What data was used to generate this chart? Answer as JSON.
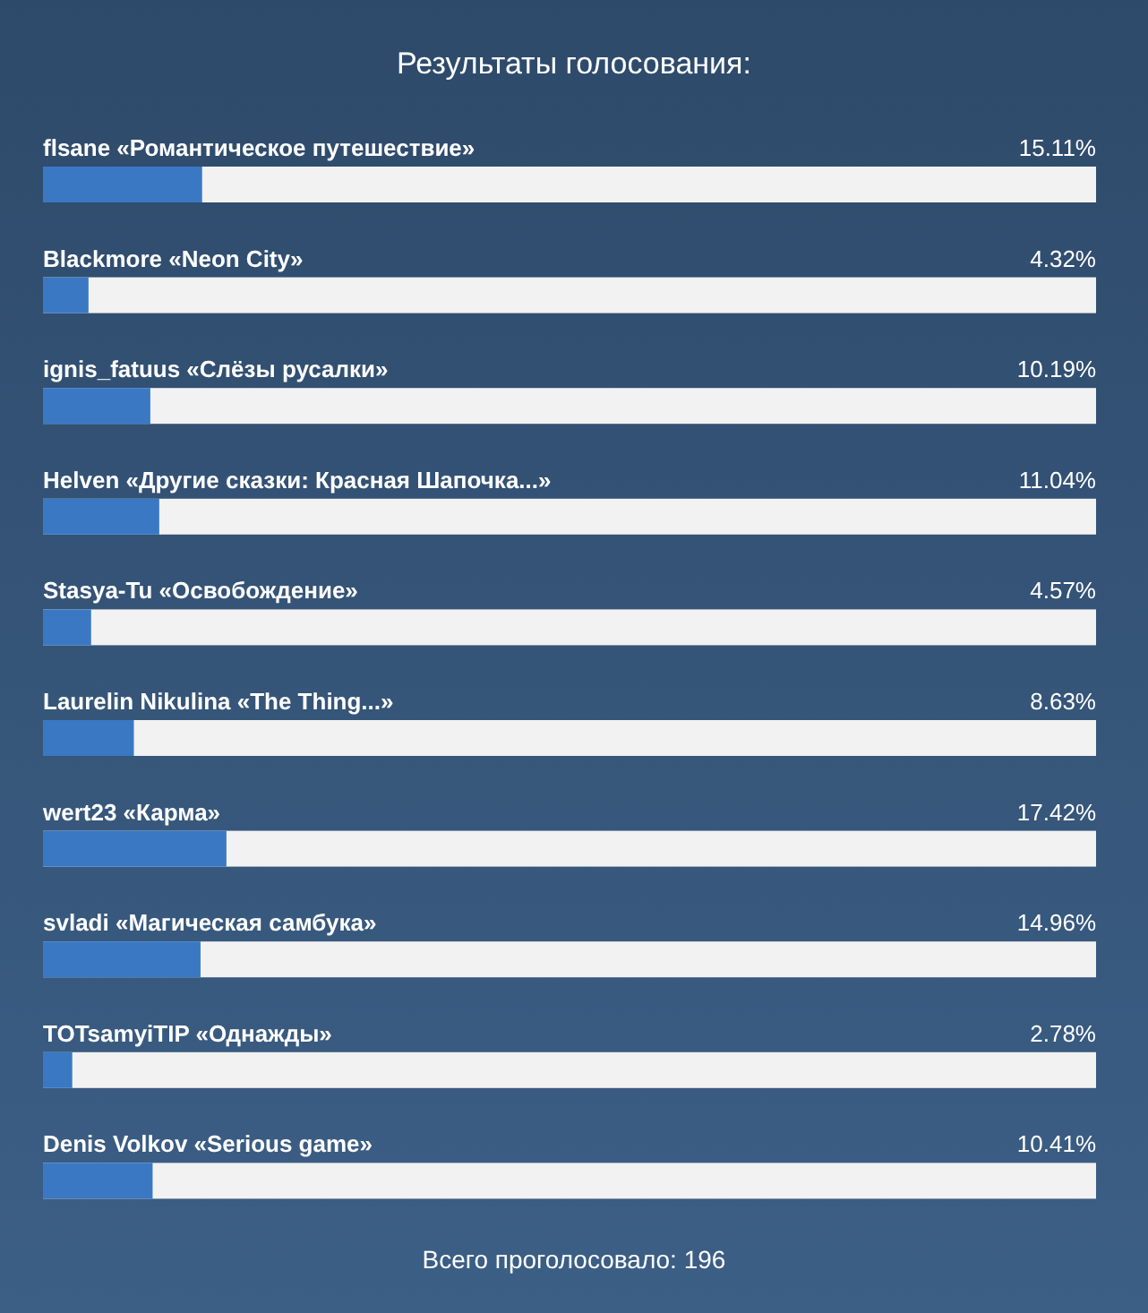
{
  "chart_data": {
    "type": "bar",
    "orientation": "horizontal",
    "title": "Результаты голосования:",
    "categories": [
      "flsane «Романтическое путешествие»",
      "Blackmore «Neon City»",
      "ignis_fatuus «Слёзы русалки»",
      "Helven «Другие сказки: Красная Шапочка...»",
      "Stasya-Tu «Освобождение»",
      "Laurelin Nikulina «The Thing...»",
      "wert23 «Карма»",
      "svladi «Магическая самбука»",
      "TOTsamyiTIP «Однажды»",
      "Denis Volkov «Serious game»"
    ],
    "values": [
      15.11,
      4.32,
      10.19,
      11.04,
      4.57,
      8.63,
      17.42,
      14.96,
      2.78,
      10.41
    ],
    "value_labels": [
      "15.11%",
      "4.32%",
      "10.19%",
      "11.04%",
      "4.57%",
      "8.63%",
      "17.42%",
      "14.96%",
      "2.78%",
      "10.41%"
    ],
    "color": "#3a78c3",
    "xlim": [
      0,
      100
    ],
    "annotations": [
      "Всего проголосовало: 196"
    ]
  }
}
